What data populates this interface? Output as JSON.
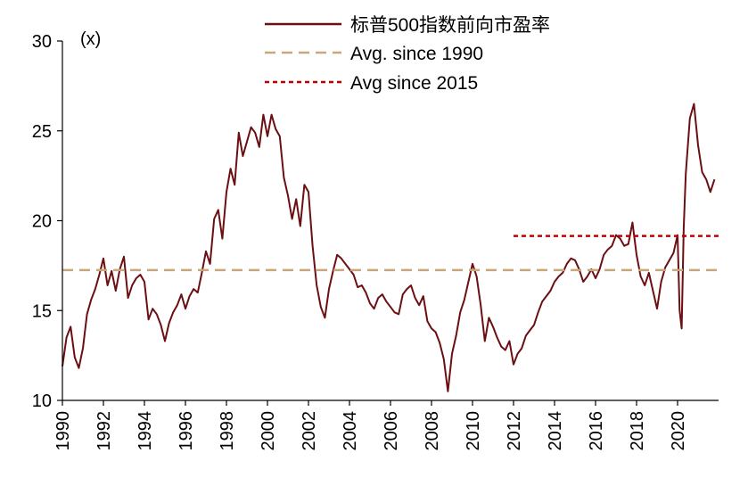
{
  "chart_data": {
    "type": "line",
    "ylabel": "(x)",
    "ylim": [
      10,
      30
    ],
    "yticks": [
      10,
      15,
      20,
      25,
      30
    ],
    "xlim": [
      1990,
      2022
    ],
    "xticks": [
      "1990",
      "1992",
      "1994",
      "1996",
      "1998",
      "2000",
      "2002",
      "2004",
      "2006",
      "2008",
      "2010",
      "2012",
      "2014",
      "2016",
      "2018",
      "2020"
    ],
    "legend_position": "top-right",
    "grid": false,
    "series": [
      {
        "name": "标普500指数前向市盈率",
        "color": "#6b0f12",
        "style": "solid",
        "x": [
          1990.0,
          1990.2,
          1990.4,
          1990.6,
          1990.8,
          1991.0,
          1991.2,
          1991.4,
          1991.6,
          1991.8,
          1992.0,
          1992.2,
          1992.4,
          1992.6,
          1992.8,
          1993.0,
          1993.2,
          1993.4,
          1993.6,
          1993.8,
          1994.0,
          1994.2,
          1994.4,
          1994.6,
          1994.8,
          1995.0,
          1995.2,
          1995.4,
          1995.6,
          1995.8,
          1996.0,
          1996.2,
          1996.4,
          1996.6,
          1996.8,
          1997.0,
          1997.2,
          1997.4,
          1997.6,
          1997.8,
          1998.0,
          1998.2,
          1998.4,
          1998.6,
          1998.8,
          1999.0,
          1999.2,
          1999.4,
          1999.6,
          1999.8,
          2000.0,
          2000.2,
          2000.4,
          2000.6,
          2000.8,
          2001.0,
          2001.2,
          2001.4,
          2001.6,
          2001.8,
          2002.0,
          2002.2,
          2002.4,
          2002.6,
          2002.8,
          2003.0,
          2003.2,
          2003.4,
          2003.6,
          2003.8,
          2004.0,
          2004.2,
          2004.4,
          2004.6,
          2004.8,
          2005.0,
          2005.2,
          2005.4,
          2005.6,
          2005.8,
          2006.0,
          2006.2,
          2006.4,
          2006.6,
          2006.8,
          2007.0,
          2007.2,
          2007.4,
          2007.6,
          2007.8,
          2008.0,
          2008.2,
          2008.4,
          2008.6,
          2008.8,
          2009.0,
          2009.2,
          2009.4,
          2009.6,
          2009.8,
          2010.0,
          2010.2,
          2010.4,
          2010.6,
          2010.8,
          2011.0,
          2011.2,
          2011.4,
          2011.6,
          2011.8,
          2012.0,
          2012.2,
          2012.4,
          2012.6,
          2012.8,
          2013.0,
          2013.2,
          2013.4,
          2013.6,
          2013.8,
          2014.0,
          2014.2,
          2014.4,
          2014.6,
          2014.8,
          2015.0,
          2015.2,
          2015.4,
          2015.6,
          2015.8,
          2016.0,
          2016.2,
          2016.4,
          2016.6,
          2016.8,
          2017.0,
          2017.2,
          2017.4,
          2017.6,
          2017.8,
          2018.0,
          2018.2,
          2018.4,
          2018.6,
          2018.8,
          2019.0,
          2019.2,
          2019.4,
          2019.6,
          2019.8,
          2020.0,
          2020.1,
          2020.2,
          2020.3,
          2020.4,
          2020.6,
          2020.8,
          2021.0,
          2021.2,
          2021.4,
          2021.6,
          2021.8
        ],
        "values": [
          11.9,
          13.5,
          14.1,
          12.4,
          11.8,
          12.9,
          14.8,
          15.6,
          16.2,
          17.0,
          17.9,
          16.4,
          17.2,
          16.1,
          17.3,
          18.0,
          15.7,
          16.4,
          16.8,
          17.0,
          16.6,
          14.5,
          15.1,
          14.8,
          14.2,
          13.3,
          14.3,
          14.9,
          15.3,
          15.9,
          15.1,
          15.8,
          16.2,
          16.0,
          17.1,
          18.3,
          17.6,
          20.1,
          20.6,
          19.0,
          21.6,
          22.9,
          22.0,
          24.9,
          23.6,
          24.4,
          25.2,
          24.9,
          24.1,
          25.9,
          24.7,
          25.9,
          25.1,
          24.7,
          22.4,
          21.4,
          20.1,
          21.2,
          19.7,
          22.0,
          21.6,
          18.6,
          16.4,
          15.2,
          14.6,
          16.2,
          17.2,
          18.1,
          17.9,
          17.6,
          17.3,
          17.0,
          16.3,
          16.4,
          16.0,
          15.4,
          15.1,
          15.7,
          15.9,
          15.5,
          15.2,
          14.9,
          14.8,
          15.9,
          16.2,
          16.4,
          15.7,
          15.3,
          15.8,
          14.4,
          14.0,
          13.8,
          13.2,
          12.3,
          10.5,
          12.6,
          13.6,
          14.9,
          15.6,
          16.6,
          17.6,
          16.9,
          15.3,
          13.3,
          14.6,
          14.1,
          13.5,
          13.0,
          12.8,
          13.3,
          12.0,
          12.6,
          12.9,
          13.6,
          13.9,
          14.2,
          14.9,
          15.5,
          15.8,
          16.1,
          16.6,
          16.9,
          17.1,
          17.6,
          17.9,
          17.8,
          17.3,
          16.6,
          16.9,
          17.3,
          16.8,
          17.3,
          18.1,
          18.4,
          18.6,
          19.2,
          19.0,
          18.6,
          18.7,
          19.9,
          18.1,
          16.9,
          16.4,
          17.1,
          16.1,
          15.1,
          16.6,
          17.4,
          17.8,
          18.2,
          19.2,
          15.0,
          14.0,
          19.6,
          22.6,
          25.7,
          26.5,
          24.2,
          22.7,
          22.3,
          21.6,
          22.3
        ]
      },
      {
        "name": "Avg. since 1990",
        "color": "#c8a87a",
        "style": "dashed",
        "x": [
          1990,
          2022
        ],
        "values": [
          17.25,
          17.25
        ]
      },
      {
        "name": "Avg since 2015",
        "color": "#c00000",
        "style": "dotted",
        "x": [
          2012.0,
          2022
        ],
        "values": [
          19.15,
          19.15
        ]
      }
    ]
  }
}
